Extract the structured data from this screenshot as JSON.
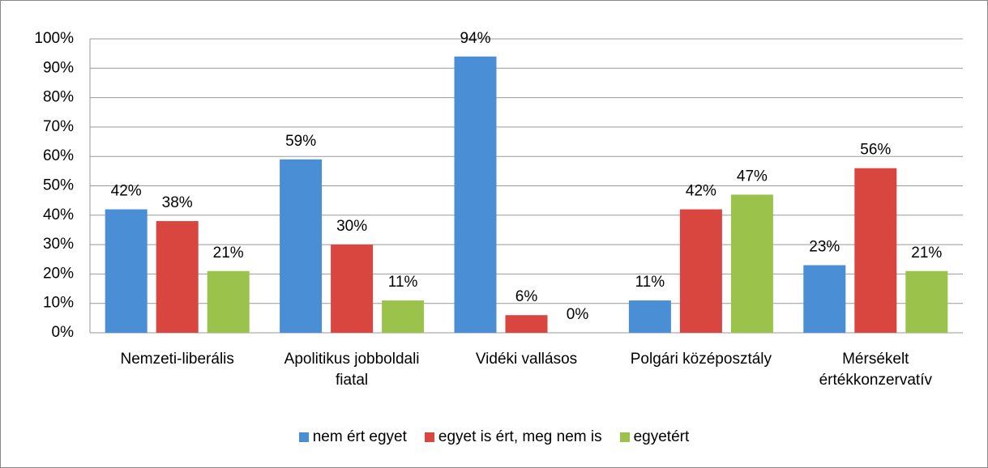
{
  "chart_data": {
    "type": "bar",
    "categories": [
      "Nemzeti-liberális",
      "Apolitikus jobboldali fiatal",
      "Vidéki vallásos",
      "Polgári középosztály",
      "Mérsékelt értékkonzervatív"
    ],
    "series": [
      {
        "name": "nem ért egyet",
        "color": "#4a8fd6",
        "values": [
          42,
          59,
          94,
          11,
          23
        ],
        "value_labels": [
          "42%",
          "59%",
          "94%",
          "11%",
          "23%"
        ]
      },
      {
        "name": "egyet is ért, meg nem is",
        "color": "#d8463f",
        "values": [
          38,
          30,
          6,
          42,
          56
        ],
        "value_labels": [
          "38%",
          "30%",
          "6%",
          "42%",
          "56%"
        ]
      },
      {
        "name": "egyetért",
        "color": "#9bc24b",
        "values": [
          21,
          11,
          0,
          47,
          21
        ],
        "value_labels": [
          "21%",
          "11%",
          "0%",
          "47%",
          "21%"
        ]
      }
    ],
    "ylim": [
      0,
      100
    ],
    "yticks": [
      {
        "value": 0,
        "label": "0%"
      },
      {
        "value": 10,
        "label": "10%"
      },
      {
        "value": 20,
        "label": "20%"
      },
      {
        "value": 30,
        "label": "30%"
      },
      {
        "value": 40,
        "label": "40%"
      },
      {
        "value": 50,
        "label": "50%"
      },
      {
        "value": 60,
        "label": "60%"
      },
      {
        "value": 70,
        "label": "70%"
      },
      {
        "value": 80,
        "label": "80%"
      },
      {
        "value": 90,
        "label": "90%"
      },
      {
        "value": 100,
        "label": "100%"
      }
    ],
    "grid": true,
    "legend": "bottom"
  }
}
